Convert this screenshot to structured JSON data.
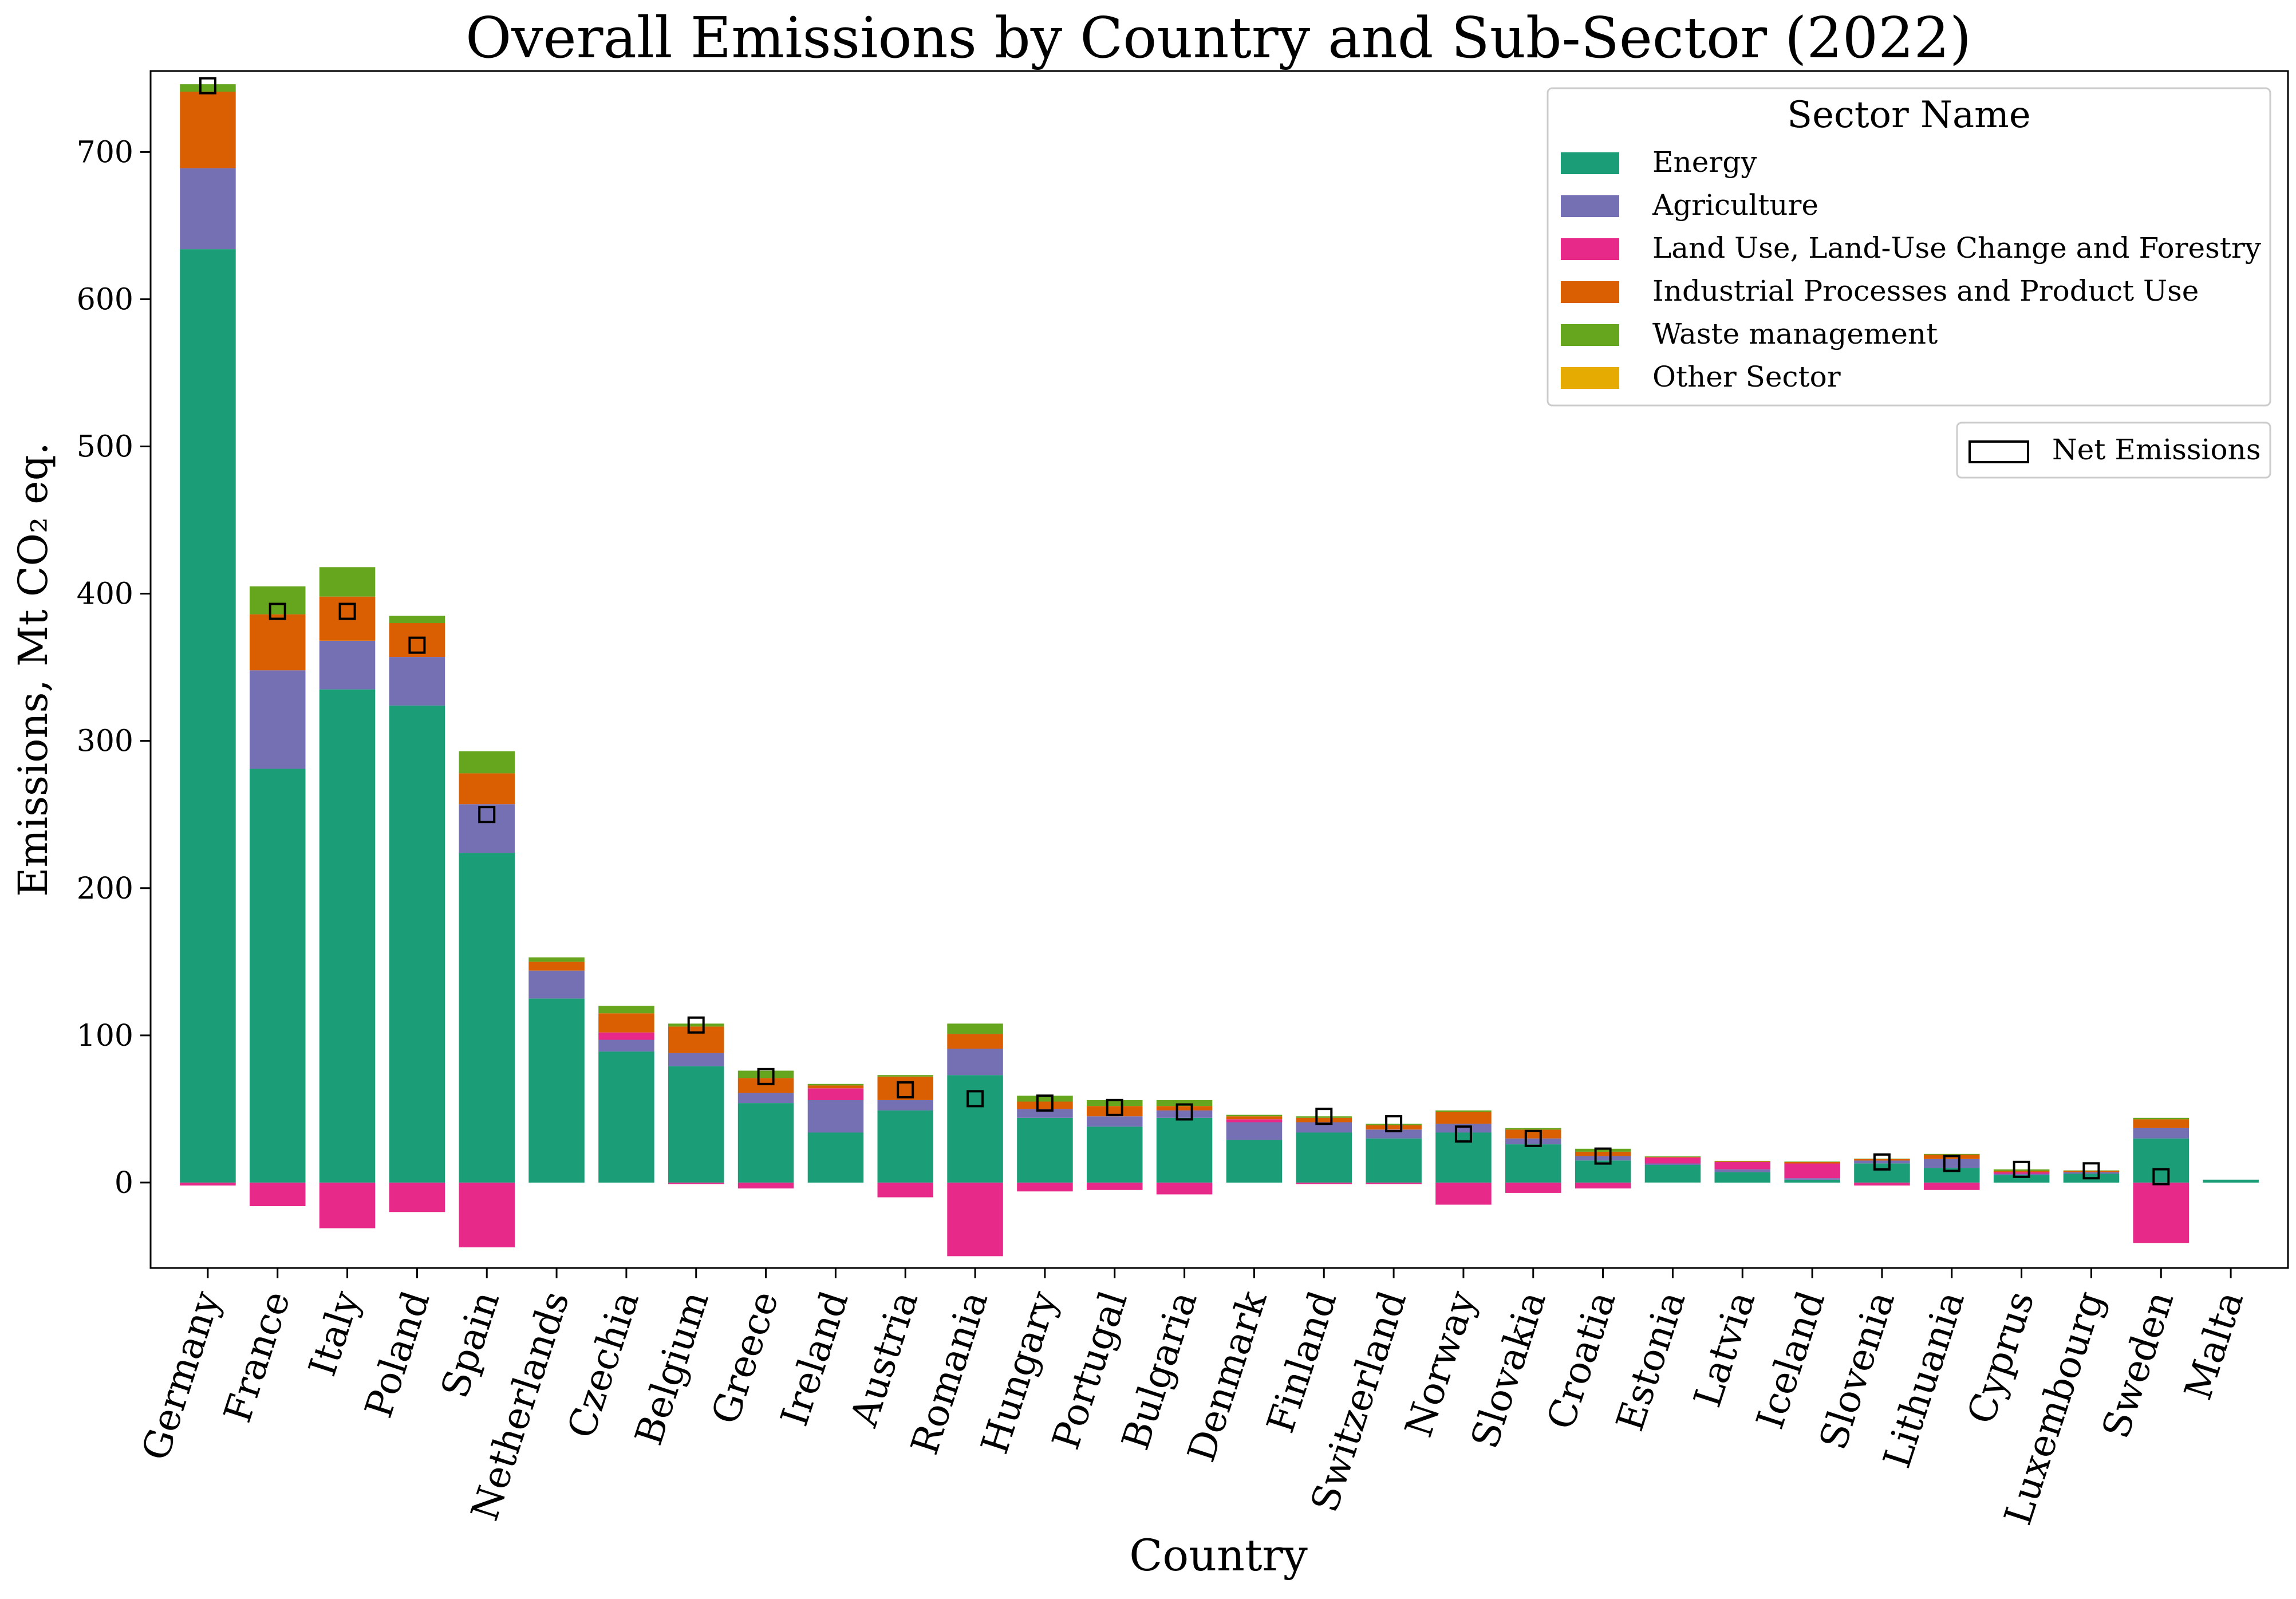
{
  "chart_data": {
    "type": "bar",
    "stacked": true,
    "title": "Overall Emissions by Country and Sub-Sector (2022)",
    "xlabel": "Country",
    "ylabel": "Emissions, Mt CO₂ eq.",
    "ylim": [
      -58,
      755
    ],
    "yticks": [
      0,
      100,
      200,
      300,
      400,
      500,
      600,
      700
    ],
    "grid": false,
    "legend_title": "Sector Name",
    "legend_position": "top-right",
    "categories": [
      "Germany",
      "France",
      "Italy",
      "Poland",
      "Spain",
      "Netherlands",
      "Czechia",
      "Belgium",
      "Greece",
      "Ireland",
      "Austria",
      "Romania",
      "Hungary",
      "Portugal",
      "Bulgaria",
      "Denmark",
      "Finland",
      "Switzerland",
      "Norway",
      "Slovakia",
      "Croatia",
      "Estonia",
      "Latvia",
      "Iceland",
      "Slovenia",
      "Lithuania",
      "Cyprus",
      "Luxembourg",
      "Sweden",
      "Malta"
    ],
    "series": [
      {
        "name": "Energy",
        "color": "#1b9e77",
        "values": [
          634,
          281,
          335,
          324,
          224,
          125,
          89,
          79,
          54,
          34,
          49,
          73,
          44,
          38,
          44,
          29,
          34,
          30,
          34,
          26,
          15,
          12,
          7,
          2,
          13,
          10,
          5,
          6,
          30,
          2
        ]
      },
      {
        "name": "Agriculture",
        "color": "#7570b3",
        "values": [
          55,
          67,
          33,
          33,
          33,
          19,
          8,
          9,
          7,
          22,
          7,
          18,
          6,
          7,
          5,
          12,
          7,
          6,
          6,
          4,
          3,
          1,
          2,
          1,
          2,
          6,
          1,
          1,
          7,
          0
        ]
      },
      {
        "name": "Land Use, Land-Use Change and Forestry",
        "color": "#e7298a",
        "values": [
          -2,
          -16,
          -31,
          -20,
          -44,
          0,
          5,
          -1,
          -4,
          8,
          -10,
          -50,
          -6,
          -5,
          -8,
          2,
          -1,
          -1,
          -15,
          -7,
          -4,
          4,
          5,
          10,
          -2,
          -5,
          1,
          0,
          -41,
          0
        ]
      },
      {
        "name": "Industrial Processes and Product Use",
        "color": "#d95f02",
        "values": [
          52,
          38,
          30,
          23,
          21,
          6,
          13,
          18,
          10,
          2,
          16,
          10,
          5,
          7,
          3,
          2,
          3,
          3,
          8,
          6,
          3,
          0.5,
          0.5,
          1,
          1,
          3,
          1,
          1,
          6,
          0
        ]
      },
      {
        "name": "Waste management",
        "color": "#66a61e",
        "values": [
          5,
          19,
          20,
          5,
          15,
          3,
          5,
          2,
          5,
          1,
          1,
          7,
          4,
          4,
          4,
          1,
          1,
          1,
          1,
          1,
          2,
          0.3,
          0.3,
          0.3,
          0.3,
          0.5,
          1,
          0.3,
          1,
          0
        ]
      },
      {
        "name": "Other Sector",
        "color": "#e6ab02",
        "values": [
          0,
          0,
          0,
          0,
          0,
          0,
          0,
          0,
          0,
          0,
          0,
          0,
          0,
          0,
          0,
          0,
          0,
          0,
          0,
          0,
          0,
          0,
          0,
          0,
          0,
          0,
          0,
          0,
          0,
          0
        ]
      }
    ],
    "net_emissions": {
      "name": "Net Emissions",
      "values": [
        745,
        388,
        388,
        365,
        250,
        null,
        null,
        107,
        72,
        null,
        63,
        57,
        54,
        51,
        48,
        null,
        45,
        40,
        33,
        30,
        18,
        null,
        null,
        null,
        14,
        13,
        9,
        8,
        4,
        null
      ]
    }
  }
}
